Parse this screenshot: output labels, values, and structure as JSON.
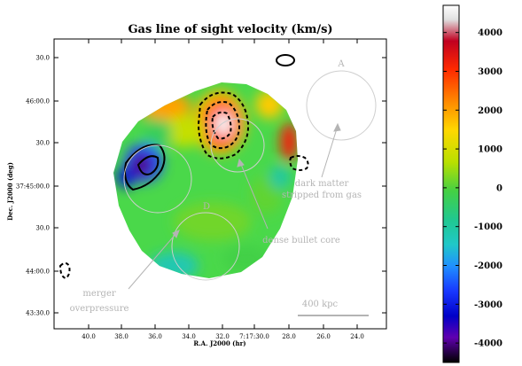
{
  "chart_data": {
    "type": "heatmap",
    "title": "Gas line of sight velocity (km/s)",
    "xlabel": "R.A. J2000 (hr)",
    "ylabel": "Dec. J2000 (deg)",
    "x_ticks": [
      "40.0",
      "38.0",
      "36.0",
      "34.0",
      "32.0",
      "7:17:30.0",
      "28.0",
      "26.0",
      "24.0"
    ],
    "y_ticks": [
      "30.0",
      "46:00.0",
      "30.0",
      "37:45:00.0",
      "30.0",
      "44:00.0",
      "43:30.0"
    ],
    "colorbar": {
      "range": [
        -4500,
        4700
      ],
      "ticks": [
        4000,
        3000,
        2000,
        1000,
        0,
        -1000,
        -2000,
        -3000,
        -4000
      ],
      "tick_labels": [
        "4000",
        "3000",
        "2000",
        "1000",
        "0",
        "-1000",
        "-2000",
        "-3000",
        "-4000"
      ]
    },
    "velocity_features": [
      {
        "kind": "peak",
        "value": 4600
      },
      {
        "kind": "trough",
        "value": -4000
      }
    ],
    "contours": [
      {
        "style": "dashed"
      },
      {
        "style": "solid"
      }
    ],
    "annotations": [
      {
        "id": "label-a",
        "text": "A"
      },
      {
        "id": "label-d",
        "text": "D"
      },
      {
        "id": "dark-matter",
        "lines": [
          "dark matter",
          "stripped from gas"
        ]
      },
      {
        "id": "bullet-core",
        "lines": [
          "dense bullet core"
        ]
      },
      {
        "id": "merger",
        "lines": [
          "merger",
          "overpressure"
        ]
      },
      {
        "id": "scale-bar",
        "text": "400 kpc"
      }
    ],
    "grid": false,
    "legend": "colorbar-right"
  }
}
